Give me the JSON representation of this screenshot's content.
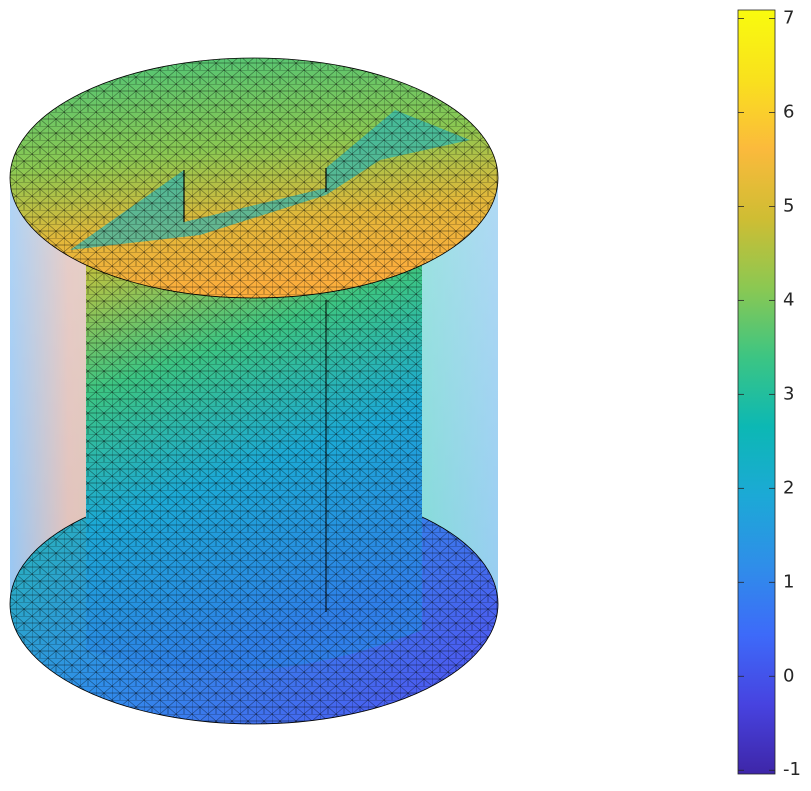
{
  "chart_data": {
    "type": "mesh-surface",
    "colorbar": {
      "clim": [
        -1.04,
        7.09
      ],
      "ticks": [
        -1,
        0,
        1,
        2,
        3,
        4,
        5,
        6,
        7
      ],
      "colormap": [
        "#3e26a8",
        "#4743e0",
        "#3d6af9",
        "#2f8ee9",
        "#1ca9d6",
        "#0cb8b4",
        "#3cc583",
        "#8bc852",
        "#cfbd33",
        "#fbba3c",
        "#f9e11d",
        "#f9fb0e"
      ]
    }
  }
}
